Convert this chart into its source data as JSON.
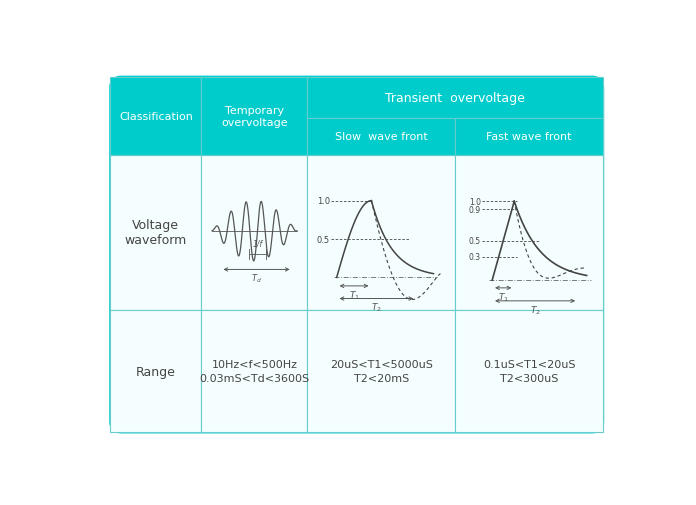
{
  "bg_color": "#ffffff",
  "header_bg": "#00cccc",
  "header_text_color": "#ffffff",
  "cell_text_color": "#444444",
  "border_color": "#66cccc",
  "cell_bg": "#f5fefe",
  "range_data": [
    "10Hz<f<500Hz\n0.03mS<Td<3600S",
    "20uS<T1<5000uS\nT2<20mS",
    "0.1uS<T1<20uS\nT2<300uS"
  ]
}
